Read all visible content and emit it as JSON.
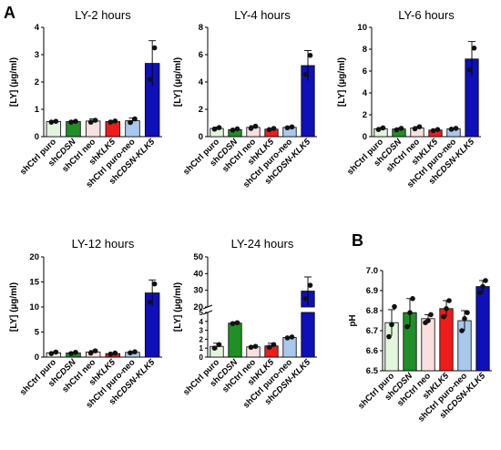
{
  "panel_labels": {
    "a": "A",
    "b": "B"
  },
  "colors": {
    "shCtrl puro": "#e3f5dc",
    "shCDSN": "#1f8f26",
    "shCtrl neo": "#f8e0de",
    "shKLK5": "#ef1c1c",
    "shCtrl puro-neo": "#a9c8ee",
    "shCDSN-KLK5": "#1010b8"
  },
  "category_labels": [
    {
      "key": "shCtrl puro",
      "prefix": "shCtrl puro",
      "italic": ""
    },
    {
      "key": "shCDSN",
      "prefix": "sh",
      "italic": "CDSN"
    },
    {
      "key": "shCtrl neo",
      "prefix": "shCtrl neo",
      "italic": ""
    },
    {
      "key": "shKLK5",
      "prefix": "sh",
      "italic": "KLK5"
    },
    {
      "key": "shCtrl puro-neo",
      "prefix": "shCtrl puro-neo",
      "italic": ""
    },
    {
      "key": "shCDSN-KLK5",
      "prefix": "sh",
      "italic": "CDSN-KLK5"
    }
  ],
  "chart_data": [
    {
      "type": "bar",
      "title": "LY-2 hours",
      "ylabel": "[LY] (µg/ml)",
      "categories": [
        "shCtrl puro",
        "shCDSN",
        "shCtrl neo",
        "shKLK5",
        "shCtrl puro-neo",
        "shCDSN-KLK5"
      ],
      "values": [
        0.55,
        0.55,
        0.57,
        0.55,
        0.58,
        2.68
      ],
      "errors": [
        0.04,
        0.04,
        0.08,
        0.04,
        0.1,
        0.83
      ],
      "points": [
        [
          0.53,
          0.56
        ],
        [
          0.53,
          0.56
        ],
        [
          0.53,
          0.6
        ],
        [
          0.53,
          0.57
        ],
        [
          0.52,
          0.65
        ],
        [
          2.1,
          3.25
        ]
      ],
      "ylim": [
        0,
        4
      ],
      "yticks": [
        0,
        1,
        2,
        3,
        4
      ]
    },
    {
      "type": "bar",
      "title": "LY-4 hours",
      "ylabel": "[LY] (µg/ml)",
      "categories": [
        "shCtrl puro",
        "shCDSN",
        "shCtrl neo",
        "shKLK5",
        "shCtrl puro-neo",
        "shCDSN-KLK5"
      ],
      "values": [
        0.6,
        0.52,
        0.68,
        0.55,
        0.68,
        5.2
      ],
      "errors": [
        0.1,
        0.06,
        0.12,
        0.06,
        0.05,
        1.1
      ],
      "points": [
        [
          0.55,
          0.66
        ],
        [
          0.48,
          0.57
        ],
        [
          0.6,
          0.76
        ],
        [
          0.51,
          0.6
        ],
        [
          0.65,
          0.71
        ],
        [
          4.55,
          5.95
        ]
      ],
      "ylim": [
        0,
        8
      ],
      "yticks": [
        0,
        2,
        4,
        6,
        8
      ]
    },
    {
      "type": "bar",
      "title": "LY-6 hours",
      "ylabel": "[LY] (µg/ml)",
      "categories": [
        "shCtrl puro",
        "shCDSN",
        "shCtrl neo",
        "shKLK5",
        "shCtrl puro-neo",
        "shCDSN-KLK5"
      ],
      "values": [
        0.72,
        0.7,
        0.8,
        0.6,
        0.72,
        7.1
      ],
      "errors": [
        0.12,
        0.1,
        0.12,
        0.08,
        0.06,
        1.6
      ],
      "points": [
        [
          0.65,
          0.8
        ],
        [
          0.62,
          0.76
        ],
        [
          0.72,
          0.9
        ],
        [
          0.55,
          0.65
        ],
        [
          0.68,
          0.76
        ],
        [
          6.1,
          8.1
        ]
      ],
      "ylim": [
        0,
        10
      ],
      "yticks": [
        0,
        2,
        4,
        6,
        8,
        10
      ]
    },
    {
      "type": "bar",
      "title": "LY-12 hours",
      "ylabel": "[LY] (µg/ml)",
      "categories": [
        "shCtrl puro",
        "shCDSN",
        "shCtrl neo",
        "shKLK5",
        "shCtrl puro-neo",
        "shCDSN-KLK5"
      ],
      "values": [
        0.85,
        0.82,
        1.0,
        0.7,
        0.95,
        12.8
      ],
      "errors": [
        0.2,
        0.15,
        0.3,
        0.15,
        0.15,
        2.6
      ],
      "points": [
        [
          0.7,
          1.0
        ],
        [
          0.7,
          0.95
        ],
        [
          0.8,
          1.25
        ],
        [
          0.6,
          0.8
        ],
        [
          0.85,
          1.05
        ],
        [
          11.0,
          14.6
        ]
      ],
      "ylim": [
        0,
        20
      ],
      "yticks": [
        0,
        5,
        10,
        15,
        20
      ]
    },
    {
      "type": "bar",
      "title": "LY-24 hours",
      "ylabel": "[LY] (µg/ml)",
      "categories": [
        "shCtrl puro",
        "shCDSN",
        "shCtrl neo",
        "shKLK5",
        "shCtrl puro-neo",
        "shCDSN-KLK5"
      ],
      "values": [
        1.2,
        3.8,
        1.15,
        1.25,
        2.2,
        29.5
      ],
      "errors": [
        0.35,
        0.1,
        0.1,
        0.3,
        0.05,
        8.5
      ],
      "points": [
        [
          1.0,
          1.4
        ],
        [
          3.75,
          3.85
        ],
        [
          1.1,
          1.2
        ],
        [
          1.1,
          1.4
        ],
        [
          2.15,
          2.25
        ],
        [
          25.0,
          33.0
        ]
      ],
      "ylim": [
        0,
        50
      ],
      "axis_break": [
        5,
        20
      ],
      "yticks": [
        0,
        1,
        2,
        3,
        4,
        5,
        20,
        30,
        40,
        50
      ]
    },
    {
      "type": "bar",
      "title": "",
      "ylabel": "pH",
      "categories": [
        "shCtrl puro",
        "shCDSN",
        "shCtrl neo",
        "shKLK5",
        "shCtrl puro-neo",
        "shCDSN-KLK5"
      ],
      "values": [
        6.74,
        6.79,
        6.76,
        6.81,
        6.75,
        6.92
      ],
      "errors": [
        0.065,
        0.07,
        0.02,
        0.04,
        0.05,
        0.03
      ],
      "points": [
        [
          6.67,
          6.73,
          6.82
        ],
        [
          6.72,
          6.79,
          6.86
        ],
        [
          6.74,
          6.75,
          6.78
        ],
        [
          6.77,
          6.81,
          6.85
        ],
        [
          6.7,
          6.76,
          6.79
        ],
        [
          6.89,
          6.92,
          6.95
        ]
      ],
      "ylim": [
        6.5,
        7.0
      ],
      "yticks": [
        6.5,
        6.6,
        6.7,
        6.8,
        6.9,
        7.0
      ]
    }
  ]
}
